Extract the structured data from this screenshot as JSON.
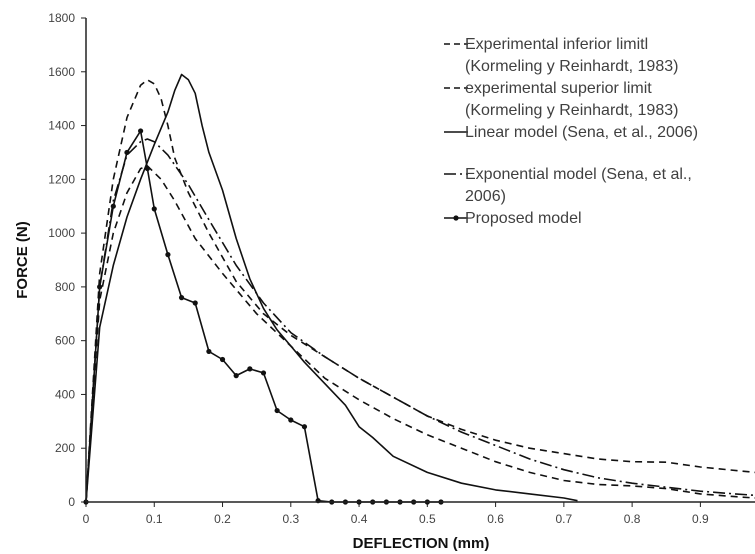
{
  "chart_data": {
    "type": "line",
    "title": "",
    "xlabel": "DEFLECTION (mm)",
    "ylabel": "FORCE (N)",
    "xlim": [
      0,
      0.98
    ],
    "ylim": [
      0,
      1800
    ],
    "x_ticks": [
      0,
      0.1,
      0.2,
      0.3,
      0.4,
      0.5,
      0.6,
      0.7,
      0.8,
      0.9
    ],
    "x_tick_labels": [
      "0",
      "0.1",
      "0.2",
      "0.3",
      "0.4",
      "0.5",
      "0.6",
      "0.7",
      "0.8",
      "0.9"
    ],
    "y_ticks": [
      0,
      200,
      400,
      600,
      800,
      1000,
      1200,
      1400,
      1600,
      1800
    ],
    "y_tick_labels": [
      "0",
      "200",
      "400",
      "600",
      "800",
      "1000",
      "1200",
      "1400",
      "1600",
      "1800"
    ],
    "grid": false,
    "legend_position": "top-right",
    "series": [
      {
        "name": "Experimental inferior limitl (Kormeling y Reinhardt, 1983)",
        "legend_lines": [
          "Experimental inferior limitl",
          "(Kormeling y Reinhardt, 1983)"
        ],
        "style": "dashed",
        "color": "#111111",
        "points": [
          [
            0,
            0
          ],
          [
            0.02,
            750
          ],
          [
            0.04,
            1000
          ],
          [
            0.06,
            1150
          ],
          [
            0.08,
            1240
          ],
          [
            0.09,
            1250
          ],
          [
            0.11,
            1200
          ],
          [
            0.13,
            1120
          ],
          [
            0.16,
            980
          ],
          [
            0.2,
            850
          ],
          [
            0.25,
            700
          ],
          [
            0.3,
            580
          ],
          [
            0.35,
            460
          ],
          [
            0.4,
            380
          ],
          [
            0.45,
            310
          ],
          [
            0.5,
            250
          ],
          [
            0.55,
            200
          ],
          [
            0.6,
            150
          ],
          [
            0.65,
            110
          ],
          [
            0.7,
            80
          ],
          [
            0.75,
            65
          ],
          [
            0.8,
            60
          ],
          [
            0.85,
            50
          ],
          [
            0.9,
            30
          ],
          [
            0.95,
            20
          ],
          [
            0.98,
            15
          ]
        ]
      },
      {
        "name": "experimental superior limit (Kormeling y Reinhardt, 1983)",
        "legend_lines": [
          "experimental superior limit",
          "(Kormeling y Reinhardt, 1983)"
        ],
        "style": "dashed",
        "color": "#111111",
        "points": [
          [
            0,
            0
          ],
          [
            0.02,
            850
          ],
          [
            0.04,
            1200
          ],
          [
            0.06,
            1430
          ],
          [
            0.08,
            1550
          ],
          [
            0.09,
            1570
          ],
          [
            0.1,
            1555
          ],
          [
            0.11,
            1500
          ],
          [
            0.12,
            1400
          ],
          [
            0.13,
            1280
          ],
          [
            0.15,
            1150
          ],
          [
            0.18,
            1000
          ],
          [
            0.22,
            820
          ],
          [
            0.26,
            700
          ],
          [
            0.3,
            620
          ],
          [
            0.35,
            540
          ],
          [
            0.4,
            460
          ],
          [
            0.45,
            390
          ],
          [
            0.5,
            320
          ],
          [
            0.55,
            270
          ],
          [
            0.6,
            230
          ],
          [
            0.65,
            200
          ],
          [
            0.7,
            180
          ],
          [
            0.75,
            160
          ],
          [
            0.8,
            150
          ],
          [
            0.85,
            148
          ],
          [
            0.9,
            130
          ],
          [
            0.98,
            110
          ]
        ]
      },
      {
        "name": "Linear model (Sena, et al., 2006)",
        "legend_lines": [
          "Linear model (Sena, et al., 2006)"
        ],
        "style": "solid",
        "color": "#111111",
        "points": [
          [
            0,
            0
          ],
          [
            0.02,
            650
          ],
          [
            0.04,
            880
          ],
          [
            0.06,
            1060
          ],
          [
            0.08,
            1200
          ],
          [
            0.1,
            1330
          ],
          [
            0.12,
            1450
          ],
          [
            0.13,
            1530
          ],
          [
            0.14,
            1590
          ],
          [
            0.15,
            1570
          ],
          [
            0.16,
            1520
          ],
          [
            0.17,
            1400
          ],
          [
            0.18,
            1300
          ],
          [
            0.2,
            1160
          ],
          [
            0.22,
            980
          ],
          [
            0.24,
            830
          ],
          [
            0.26,
            720
          ],
          [
            0.28,
            640
          ],
          [
            0.3,
            580
          ],
          [
            0.32,
            520
          ],
          [
            0.35,
            440
          ],
          [
            0.38,
            360
          ],
          [
            0.4,
            280
          ],
          [
            0.42,
            240
          ],
          [
            0.45,
            170
          ],
          [
            0.5,
            110
          ],
          [
            0.55,
            70
          ],
          [
            0.6,
            45
          ],
          [
            0.65,
            30
          ],
          [
            0.7,
            15
          ],
          [
            0.72,
            5
          ]
        ]
      },
      {
        "name": "Exponential model (Sena, et al., 2006)",
        "legend_lines": [
          "Exponential model (Sena, et al.,",
          "2006)"
        ],
        "style": "dash-dot",
        "color": "#111111",
        "points": [
          [
            0,
            0
          ],
          [
            0.02,
            800
          ],
          [
            0.04,
            1120
          ],
          [
            0.06,
            1290
          ],
          [
            0.08,
            1340
          ],
          [
            0.09,
            1350
          ],
          [
            0.1,
            1340
          ],
          [
            0.12,
            1290
          ],
          [
            0.15,
            1180
          ],
          [
            0.18,
            1050
          ],
          [
            0.22,
            880
          ],
          [
            0.26,
            740
          ],
          [
            0.3,
            630
          ],
          [
            0.35,
            540
          ],
          [
            0.4,
            460
          ],
          [
            0.45,
            390
          ],
          [
            0.5,
            320
          ],
          [
            0.55,
            260
          ],
          [
            0.6,
            210
          ],
          [
            0.65,
            160
          ],
          [
            0.7,
            120
          ],
          [
            0.75,
            90
          ],
          [
            0.8,
            70
          ],
          [
            0.85,
            55
          ],
          [
            0.9,
            40
          ],
          [
            0.95,
            30
          ],
          [
            0.98,
            25
          ]
        ]
      },
      {
        "name": "Proposed model",
        "legend_lines": [
          "Proposed model"
        ],
        "style": "solid-marker",
        "color": "#111111",
        "points": [
          [
            0,
            0
          ],
          [
            0.02,
            800
          ],
          [
            0.04,
            1100
          ],
          [
            0.06,
            1300
          ],
          [
            0.08,
            1380
          ],
          [
            0.09,
            1240
          ],
          [
            0.1,
            1090
          ],
          [
            0.12,
            920
          ],
          [
            0.14,
            760
          ],
          [
            0.16,
            740
          ],
          [
            0.18,
            560
          ],
          [
            0.2,
            530
          ],
          [
            0.22,
            470
          ],
          [
            0.24,
            495
          ],
          [
            0.26,
            480
          ],
          [
            0.28,
            340
          ],
          [
            0.3,
            305
          ],
          [
            0.32,
            280
          ],
          [
            0.34,
            5
          ],
          [
            0.36,
            0
          ],
          [
            0.38,
            0
          ],
          [
            0.4,
            0
          ],
          [
            0.42,
            0
          ],
          [
            0.44,
            0
          ],
          [
            0.46,
            0
          ],
          [
            0.48,
            0
          ],
          [
            0.5,
            0
          ],
          [
            0.52,
            0
          ]
        ]
      }
    ]
  }
}
